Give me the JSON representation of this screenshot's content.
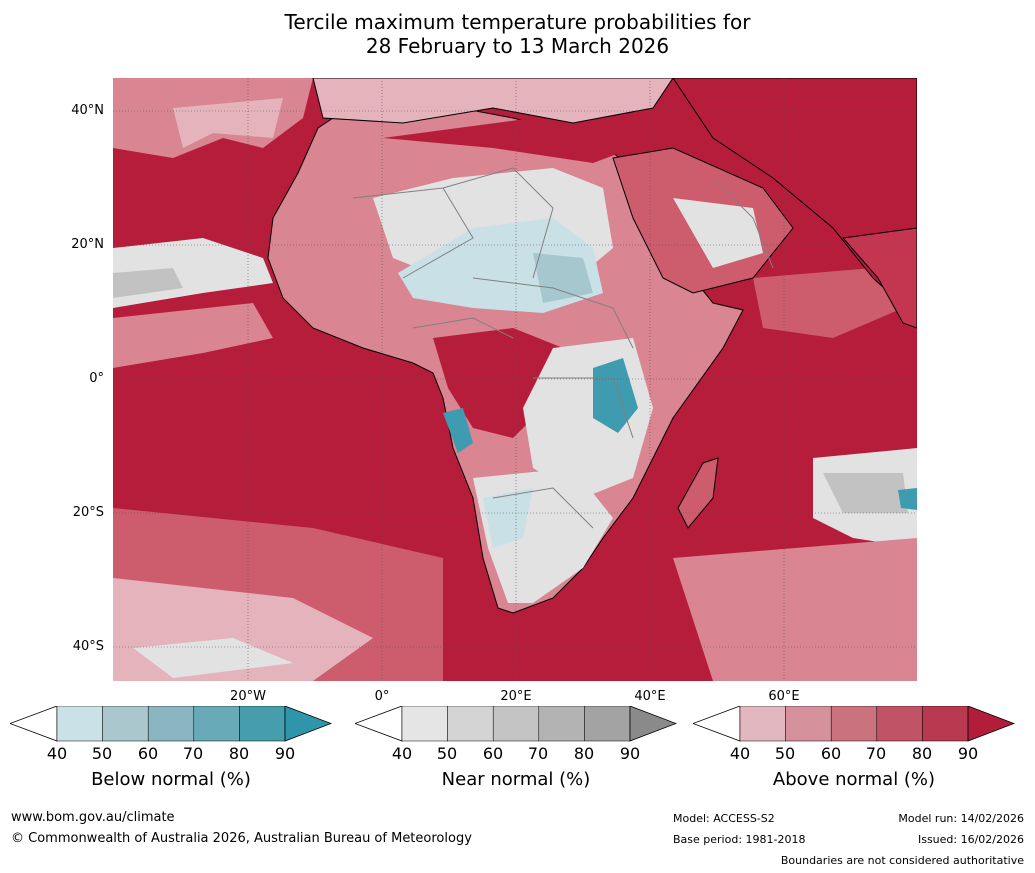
{
  "title": {
    "line1": "Tercile maximum temperature probabilities for",
    "line2": "28 February to 13 March 2026"
  },
  "map": {
    "latitude_labels": [
      "40°N",
      "20°N",
      "0°",
      "20°S",
      "40°S"
    ],
    "longitude_labels": [
      "20°W",
      "0°",
      "20°E",
      "40°E",
      "60°E"
    ],
    "colors": {
      "ocean_base": "#b51d3a",
      "above_80": "#c4364f",
      "above_70": "#cd5c6d",
      "above_60": "#d98592",
      "above_50": "#e4b3bb",
      "near": "#e2e2e2",
      "near_dark": "#c2c2c2",
      "below_50": "#c8e0e6",
      "below_60": "#a6c7ce",
      "below_80": "#3f9bb0",
      "coastline": "#000000",
      "boundaries": "#808080"
    }
  },
  "legends": {
    "below": {
      "label": "Below normal (%)",
      "ticks": [
        "40",
        "50",
        "60",
        "70",
        "80",
        "90"
      ],
      "colors": [
        "#ffffff",
        "#c9e1e7",
        "#a9c7cd",
        "#8ab6c1",
        "#68aab7",
        "#469ead",
        "#2f95aa"
      ]
    },
    "near": {
      "label": "Near normal (%)",
      "ticks": [
        "40",
        "50",
        "60",
        "70",
        "80",
        "90"
      ],
      "colors": [
        "#ffffff",
        "#e5e5e5",
        "#d4d4d4",
        "#c4c4c4",
        "#b3b3b3",
        "#a3a3a3",
        "#8a8a8a"
      ]
    },
    "above": {
      "label": "Above normal (%)",
      "ticks": [
        "40",
        "50",
        "60",
        "70",
        "80",
        "90"
      ],
      "colors": [
        "#ffffff",
        "#e3b7bf",
        "#d5919c",
        "#cb727f",
        "#c05466",
        "#b93a50",
        "#b21e3a"
      ]
    }
  },
  "footer": {
    "website": "www.bom.gov.au/climate",
    "copyright": "© Commonwealth of Australia 2026, Australian Bureau of Meteorology",
    "model": "Model: ACCESS-S2",
    "base_period": "Base period: 1981-2018",
    "model_run": "Model run: 14/02/2026",
    "issued": "Issued: 16/02/2026",
    "disclaimer": "Boundaries are not considered authoritative"
  }
}
